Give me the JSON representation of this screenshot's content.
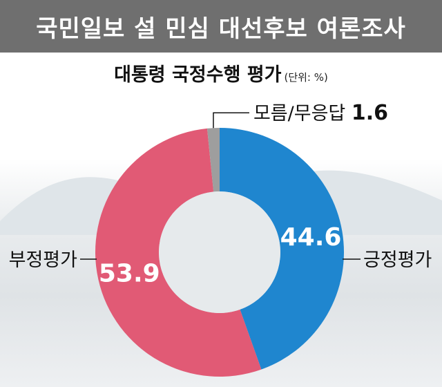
{
  "banner": {
    "title": "국민일보 설 민심 대선후보 여론조사"
  },
  "chart_data": {
    "type": "pie",
    "title": "대통령 국정수행 평가",
    "unit_note": "(단위: %)",
    "slices": [
      {
        "label": "긍정평가",
        "value": 44.6,
        "value_label": "44.6",
        "color": "#1f86cf"
      },
      {
        "label": "부정평가",
        "value": 53.9,
        "value_label": "53.9",
        "color": "#e15a75"
      },
      {
        "label": "모름/무응답",
        "value": 1.6,
        "value_label": "1.6",
        "color": "#9e9e9e"
      }
    ]
  }
}
